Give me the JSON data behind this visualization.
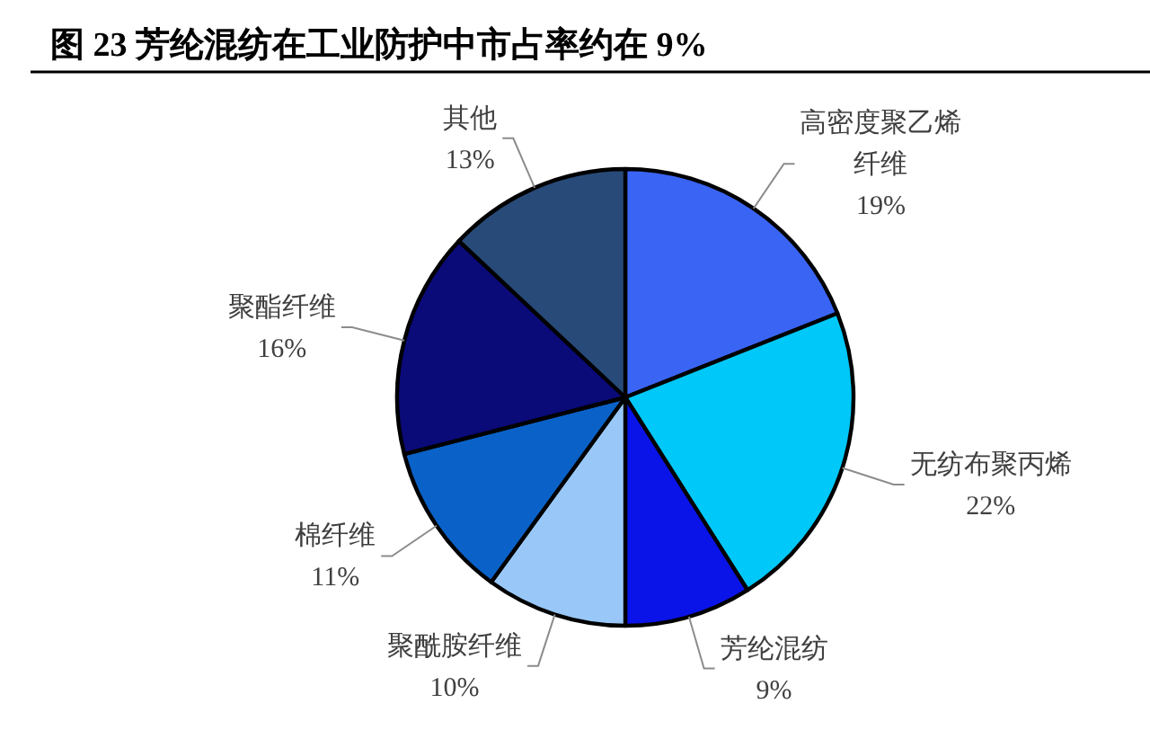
{
  "chart_data": {
    "type": "pie",
    "title": "图 23 芳纶混纺在工业防护中市占率约在 9%",
    "categories": [
      "高密度聚乙烯纤维",
      "无纺布聚丙烯",
      "芳纶混纺",
      "聚酰胺纤维",
      "棉纤维",
      "聚酯纤维",
      "其他"
    ],
    "values": [
      19,
      22,
      9,
      10,
      11,
      16,
      13
    ],
    "value_labels": [
      "19%",
      "22%",
      "9%",
      "10%",
      "11%",
      "16%",
      "13%"
    ],
    "colors": [
      "#3a64f4",
      "#00c8f8",
      "#0a14e8",
      "#99c8f8",
      "#0a62c8",
      "#0a0a78",
      "#284a78"
    ]
  }
}
